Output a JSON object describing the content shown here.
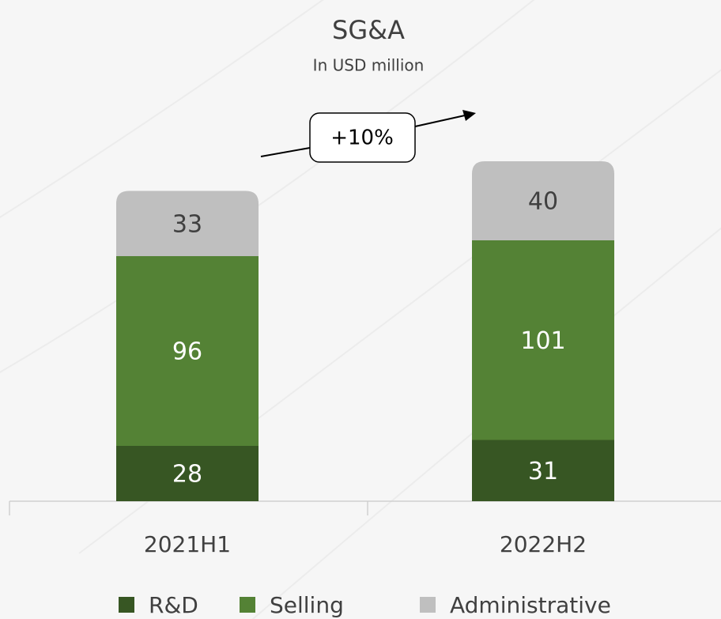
{
  "chart_data": {
    "type": "stacked_bar",
    "title": "SG&A",
    "subtitle": "In USD million",
    "annotation": "+10%",
    "categories": [
      "2021H1",
      "2022H2"
    ],
    "series": [
      {
        "name": "R&D",
        "color": "#375623",
        "values": [
          28,
          31
        ]
      },
      {
        "name": "Selling",
        "color": "#548235",
        "values": [
          96,
          101
        ]
      },
      {
        "name": "Administrative",
        "color": "#bfbfbf",
        "values": [
          33,
          40
        ]
      }
    ]
  }
}
